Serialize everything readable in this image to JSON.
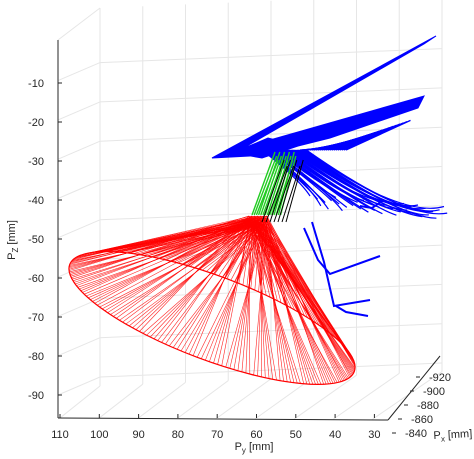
{
  "chart_data": {
    "type": "line",
    "projection": "3d",
    "grid": true,
    "xlabel": {
      "base": "P",
      "sub": "x",
      "unit": " [mm]"
    },
    "ylabel": {
      "base": "P",
      "sub": "y",
      "unit": " [mm]"
    },
    "zlabel": {
      "base": "P",
      "sub": "Z",
      "unit": " [mm]"
    },
    "xlim": [
      -845,
      -920
    ],
    "ylim": [
      30,
      110
    ],
    "zlim": [
      -95,
      -10
    ],
    "x_ticks": [
      "-920",
      "-900",
      "-880",
      "-860",
      "-840"
    ],
    "y_ticks": [
      "110",
      "100",
      "90",
      "80",
      "70",
      "60",
      "50",
      "40",
      "30"
    ],
    "z_ticks": [
      "-10",
      "-20",
      "-30",
      "-40",
      "-50",
      "-60",
      "-70",
      "-80",
      "-90"
    ],
    "colors": {
      "red": "#ff0000",
      "green": "#22cc22",
      "black": "#000000",
      "blue": "#0000ff",
      "grid": "#e6e6e6",
      "axis": "#262626"
    },
    "series": [
      {
        "color": "red",
        "style": "cone of line segments",
        "apex_approx": {
          "y": 55,
          "z": -45
        },
        "base_ellipse_approx": {
          "y_range": [
            32,
            110
          ],
          "z_range": [
            -95,
            -50
          ]
        }
      },
      {
        "color": "green",
        "style": "short line segments near apex",
        "approx_y_range": [
          51,
          60
        ],
        "approx_z_range": [
          -45,
          -31
        ]
      },
      {
        "color": "black",
        "style": "short line segments near apex",
        "approx_y_range": [
          49,
          55
        ],
        "approx_z_range": [
          -45,
          -33
        ]
      },
      {
        "color": "blue",
        "style": "fan of curves",
        "approx_y_range": [
          28,
          62
        ],
        "approx_z_range": [
          -82,
          -10
        ]
      }
    ]
  }
}
